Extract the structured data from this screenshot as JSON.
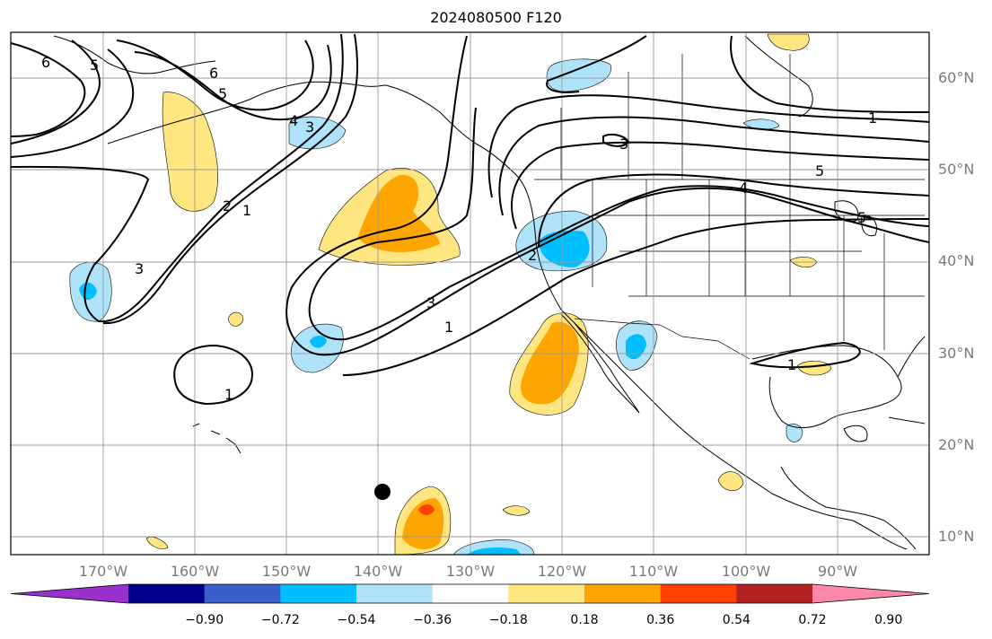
{
  "title": "2024080500 F120",
  "lat_labels": [
    "60°N",
    "50°N",
    "40°N",
    "30°N",
    "20°N",
    "10°N"
  ],
  "lon_labels": [
    "170°W",
    "160°W",
    "150°W",
    "140°W",
    "130°W",
    "120°W",
    "110°W",
    "100°W",
    "90°W"
  ],
  "colorbar": {
    "ticks": [
      "−0.90",
      "−0.72",
      "−0.54",
      "−0.36",
      "−0.18",
      "0.18",
      "0.36",
      "0.54",
      "0.72",
      "0.90"
    ],
    "colors": [
      "#9932cc",
      "#00008b",
      "#3a5fcd",
      "#00bfff",
      "#aee3fa",
      "#ffffff",
      "#ffe680",
      "#ffa500",
      "#ff4000",
      "#b22222",
      "#ff88aa"
    ]
  },
  "contour_labels": [
    "6",
    "5",
    "6",
    "5",
    "4",
    "3",
    "2",
    "1",
    "3",
    "1",
    "1",
    "3",
    "2",
    "3",
    "1",
    "5",
    "4",
    "1",
    "5"
  ],
  "colors": {
    "land_line": "#000000",
    "grid": "#9a9a9a",
    "axis_text": "#7a7a7a",
    "contour": "#000000"
  },
  "map": {
    "projection": "plate carree",
    "extent": {
      "lon": [
        -180,
        -80
      ],
      "lat": [
        8,
        65
      ]
    },
    "grid_lines": true,
    "marker": {
      "lon": -139,
      "lat": 15
    }
  },
  "shaded_field": {
    "positive_regions": 12,
    "negative_regions": 9
  }
}
